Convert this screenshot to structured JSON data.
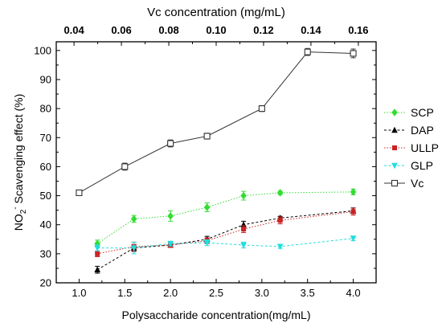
{
  "chart_data": {
    "type": "line",
    "xlabel_bottom": "Polysaccharide concentration(mg/mL)",
    "xlabel_top": "Vc concentration (mg/mL)",
    "ylabel_main": "NO",
    "ylabel_sub": "2",
    "ylabel_sup": "-",
    "ylabel_rest": " Scavenging effect (%)",
    "xlim_bottom": [
      0.75,
      4.25
    ],
    "xlim_top": [
      0.0325,
      0.1675
    ],
    "ylim": [
      20,
      103
    ],
    "xticks_bottom": [
      {
        "v": 1.0,
        "label": "1.0"
      },
      {
        "v": 1.5,
        "label": "1.5"
      },
      {
        "v": 2.0,
        "label": "2.0"
      },
      {
        "v": 2.5,
        "label": "2.5"
      },
      {
        "v": 3.0,
        "label": "3.0"
      },
      {
        "v": 3.5,
        "label": "3.5"
      },
      {
        "v": 4.0,
        "label": "4.0"
      }
    ],
    "xticks_top": [
      {
        "v": 0.04,
        "label": "0.04"
      },
      {
        "v": 0.06,
        "label": "0.06"
      },
      {
        "v": 0.08,
        "label": "0.08"
      },
      {
        "v": 0.1,
        "label": "0.10"
      },
      {
        "v": 0.12,
        "label": "0.12"
      },
      {
        "v": 0.14,
        "label": "0.14"
      },
      {
        "v": 0.16,
        "label": "0.16"
      }
    ],
    "yticks": [
      {
        "v": 20,
        "label": "20"
      },
      {
        "v": 30,
        "label": "30"
      },
      {
        "v": 40,
        "label": "40"
      },
      {
        "v": 50,
        "label": "50"
      },
      {
        "v": 60,
        "label": "60"
      },
      {
        "v": 70,
        "label": "70"
      },
      {
        "v": 80,
        "label": "80"
      },
      {
        "v": 90,
        "label": "90"
      },
      {
        "v": 100,
        "label": "100"
      }
    ],
    "legend_position": "right",
    "series": [
      {
        "name": "SCP",
        "color": "#33dd33",
        "marker": "diamond",
        "dash": "dotted",
        "x": [
          1.2,
          1.6,
          2.0,
          2.4,
          2.8,
          3.2,
          4.0
        ],
        "y": [
          33.5,
          42.0,
          43.0,
          46.0,
          50.0,
          51.0,
          51.3
        ],
        "err": [
          1.2,
          1.2,
          1.8,
          1.5,
          1.5,
          0.6,
          1.0
        ]
      },
      {
        "name": "DAP",
        "color": "#000000",
        "marker": "triangle-up",
        "dash": "dashed",
        "x": [
          1.2,
          1.6,
          2.0,
          2.4,
          2.8,
          3.2,
          4.0
        ],
        "y": [
          24.5,
          32.0,
          33.0,
          35.0,
          40.0,
          42.3,
          44.8
        ],
        "err": [
          1.2,
          1.2,
          0.8,
          1.0,
          1.2,
          0.6,
          1.0
        ]
      },
      {
        "name": "ULLP",
        "color": "#cc2222",
        "marker": "square",
        "dash": "dotted",
        "x": [
          1.2,
          1.6,
          2.0,
          2.4,
          2.8,
          3.2,
          4.0
        ],
        "y": [
          30.0,
          32.5,
          33.0,
          34.5,
          38.5,
          41.5,
          44.5
        ],
        "err": [
          1.0,
          1.5,
          0.8,
          1.0,
          1.2,
          1.2,
          1.2
        ]
      },
      {
        "name": "GLP",
        "color": "#22dddd",
        "marker": "triangle-down",
        "dash": "dashed",
        "x": [
          1.2,
          1.6,
          2.0,
          2.4,
          2.8,
          3.2,
          4.0
        ],
        "y": [
          32.0,
          32.0,
          33.5,
          33.8,
          33.0,
          32.5,
          35.3
        ],
        "err": [
          1.0,
          2.0,
          0.8,
          1.0,
          1.0,
          0.6,
          0.8
        ]
      },
      {
        "name": "Vc",
        "color": "#333333",
        "marker": "open-square",
        "dash": "solid",
        "x": [
          1.0,
          1.5,
          2.0,
          2.4,
          3.0,
          3.5,
          4.0
        ],
        "y": [
          51.0,
          60.0,
          68.0,
          70.5,
          80.0,
          99.5,
          99.0
        ],
        "err": [
          0.6,
          1.2,
          1.2,
          1.0,
          1.0,
          1.2,
          1.5
        ]
      }
    ]
  }
}
